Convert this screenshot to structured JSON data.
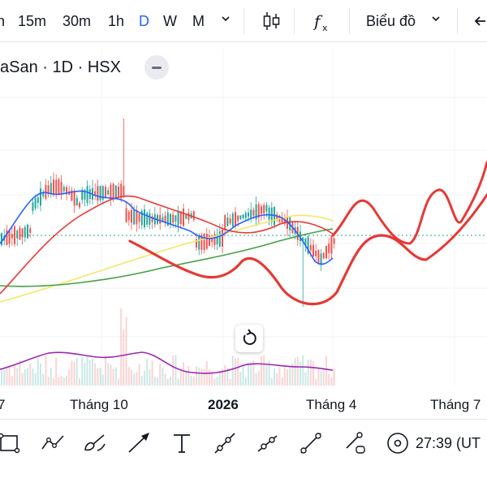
{
  "toolbar": {
    "timeframes": [
      {
        "label": "h",
        "active": false
      },
      {
        "label": "15m",
        "active": false
      },
      {
        "label": "30m",
        "active": false
      },
      {
        "label": "1h",
        "active": false
      },
      {
        "label": "D",
        "active": true
      },
      {
        "label": "W",
        "active": false
      },
      {
        "label": "M",
        "active": false
      }
    ],
    "chart_type_label": "Biểu đồ",
    "active_color": "#2962ff"
  },
  "chart": {
    "legend": "aSan · 1D · HSX",
    "colors": {
      "up_candle": "#26a69a",
      "down_candle": "#ef5350",
      "ma_short": "#2962ff",
      "ma_medium": "#e53935",
      "ma_long_yellow": "#f5e663",
      "ma_long_green": "#43a047",
      "volume_ma": "#9c27b0",
      "drawing": "#e53935",
      "price_line": "#26a69a"
    }
  },
  "time_axis": {
    "labels": [
      {
        "text": "7",
        "year": false
      },
      {
        "text": "Tháng 10",
        "year": false
      },
      {
        "text": "2026",
        "year": true
      },
      {
        "text": "Tháng 4",
        "year": false
      },
      {
        "text": "Tháng 7",
        "year": false
      }
    ]
  },
  "drawing_tools": {
    "tools": [
      {
        "name": "rectangle-tool"
      },
      {
        "name": "trend-path-tool"
      },
      {
        "name": "brush-tool"
      },
      {
        "name": "arrow-tool"
      },
      {
        "name": "text-tool"
      },
      {
        "name": "ray-tool"
      },
      {
        "name": "trend-line-tool"
      },
      {
        "name": "extended-line-tool"
      },
      {
        "name": "line-circle-tool"
      },
      {
        "name": "target-tool"
      }
    ],
    "clock_text": "27:39 (UT"
  }
}
